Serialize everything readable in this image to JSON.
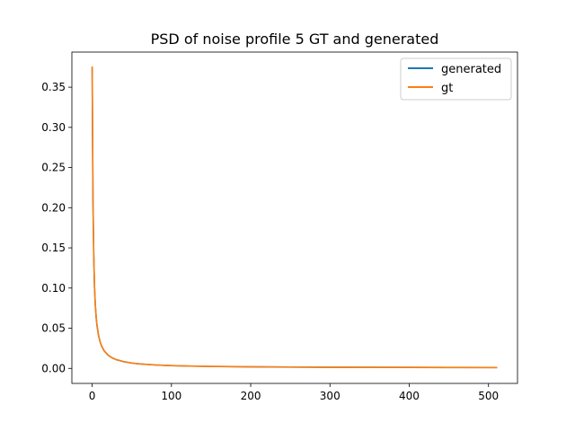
{
  "chart_data": {
    "type": "line",
    "title": "PSD of noise profile 5 GT and generated",
    "xlabel": "",
    "ylabel": "",
    "xlim": [
      -25.6,
      536.6
    ],
    "ylim": [
      -0.0187,
      0.3937
    ],
    "xticks": [
      0,
      100,
      200,
      300,
      400,
      500
    ],
    "xtick_labels": [
      "0",
      "100",
      "200",
      "300",
      "400",
      "500"
    ],
    "yticks": [
      0.0,
      0.05,
      0.1,
      0.15,
      0.2,
      0.25,
      0.3,
      0.35
    ],
    "ytick_labels": [
      "0.00",
      "0.05",
      "0.10",
      "0.15",
      "0.20",
      "0.25",
      "0.30",
      "0.35"
    ],
    "grid": false,
    "legend_position": "upper right",
    "x": [
      0,
      1,
      2,
      3,
      4,
      5,
      6,
      8,
      10,
      12,
      15,
      20,
      25,
      30,
      40,
      50,
      60,
      80,
      100,
      125,
      150,
      200,
      250,
      300,
      350,
      400,
      450,
      511
    ],
    "series": [
      {
        "name": "generated",
        "color": "#1f77b4",
        "values": [
          0.374,
          0.21,
          0.14,
          0.1,
          0.078,
          0.064,
          0.054,
          0.041,
          0.033,
          0.0275,
          0.022,
          0.0165,
          0.0132,
          0.011,
          0.0083,
          0.0066,
          0.0055,
          0.0042,
          0.0034,
          0.0028,
          0.0024,
          0.0019,
          0.0016,
          0.0014,
          0.0013,
          0.0012,
          0.0011,
          0.001
        ]
      },
      {
        "name": "gt",
        "color": "#ff7f0e",
        "values": [
          0.376,
          0.212,
          0.141,
          0.101,
          0.079,
          0.065,
          0.055,
          0.0415,
          0.0333,
          0.0278,
          0.0222,
          0.0167,
          0.0133,
          0.0111,
          0.0084,
          0.0067,
          0.0056,
          0.0043,
          0.0035,
          0.0029,
          0.0025,
          0.002,
          0.0017,
          0.0015,
          0.0014,
          0.0013,
          0.0012,
          0.0011
        ]
      }
    ]
  }
}
